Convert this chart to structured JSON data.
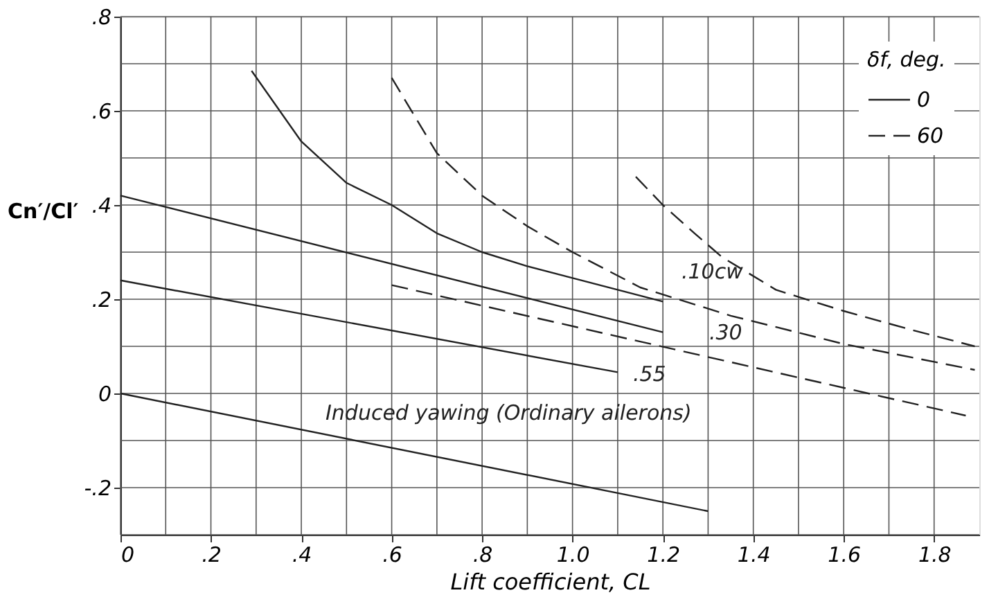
{
  "chart_data": {
    "type": "line",
    "xlabel": "Lift coefficient, CL",
    "ylabel": "Cn′/Cl′",
    "legend_title": "δf, deg.",
    "xlim": [
      0,
      1.9
    ],
    "ylim": [
      -0.3,
      0.8
    ],
    "xticks": [
      0,
      {
        "value": 0.1,
        "label": null
      },
      {
        "value": 0.2,
        "label": ".2"
      },
      {
        "value": 0.3,
        "label": null
      },
      {
        "value": 0.4,
        "label": ".4"
      },
      {
        "value": 0.5,
        "label": null
      },
      {
        "value": 0.6,
        "label": ".6"
      },
      {
        "value": 0.7,
        "label": null
      },
      {
        "value": 0.8,
        "label": ".8"
      },
      {
        "value": 0.9,
        "label": null
      },
      {
        "value": 1.0,
        "label": "1.0"
      },
      {
        "value": 1.1,
        "label": null
      },
      {
        "value": 1.2,
        "label": "1.2"
      },
      {
        "value": 1.3,
        "label": null
      },
      {
        "value": 1.4,
        "label": "1.4"
      },
      {
        "value": 1.5,
        "label": null
      },
      {
        "value": 1.6,
        "label": "1.6"
      },
      {
        "value": 1.7,
        "label": null
      },
      {
        "value": 1.8,
        "label": "1.8"
      }
    ],
    "yticks": [
      {
        "value": -0.3,
        "label": null
      },
      {
        "value": -0.2,
        "label": "-.2"
      },
      {
        "value": -0.1,
        "label": null
      },
      0,
      {
        "value": 0.1,
        "label": null
      },
      {
        "value": 0.2,
        "label": ".2"
      },
      {
        "value": 0.3,
        "label": null
      },
      {
        "value": 0.4,
        "label": ".4"
      },
      {
        "value": 0.5,
        "label": null
      },
      {
        "value": 0.6,
        "label": ".6"
      },
      {
        "value": 0.7,
        "label": null
      },
      {
        "value": 0.8,
        "label": ".8"
      }
    ],
    "grid": true,
    "legend": "top right",
    "marker": "none",
    "series": [
      {
        "name": "0",
        "color": "#222222",
        "line_style": "solid",
        "x": [
          0,
          1.3
        ],
        "values": [
          0,
          -0.25
        ]
      },
      {
        "color": "#222222",
        "line_style": "solid",
        "x": [
          0,
          1.1
        ],
        "values": [
          0.24,
          0.045
        ]
      },
      {
        "color": "#222222",
        "line_style": "solid",
        "x": [
          0,
          1.2
        ],
        "values": [
          0.42,
          0.13
        ]
      },
      {
        "color": "#222222",
        "line_style": "solid",
        "x": [
          0.29,
          0.4,
          0.5,
          0.6,
          0.7,
          0.8,
          0.9,
          1.0,
          1.1,
          1.2
        ],
        "values": [
          0.685,
          0.535,
          0.447,
          0.4,
          0.34,
          0.3,
          0.27,
          0.245,
          0.22,
          0.195
        ]
      },
      {
        "name": "60",
        "color": "#222222",
        "line_style": "dashed",
        "x": [
          0.6,
          1.87
        ],
        "values": [
          0.23,
          -0.047
        ]
      },
      {
        "color": "#222222",
        "line_style": "dashed",
        "x": [
          0.6,
          0.7,
          0.8,
          0.9,
          1.0,
          1.15,
          1.35,
          1.6,
          1.89
        ],
        "values": [
          0.67,
          0.51,
          0.42,
          0.355,
          0.3,
          0.225,
          0.165,
          0.105,
          0.05
        ]
      },
      {
        "color": "#222222",
        "line_style": "dashed",
        "x": [
          1.14,
          1.2,
          1.27,
          1.33,
          1.45,
          1.6,
          1.75,
          1.89
        ],
        "values": [
          0.46,
          0.4,
          0.34,
          0.29,
          0.22,
          0.175,
          0.135,
          0.1
        ]
      }
    ],
    "annotations": [
      ".10cw",
      ".30",
      ".55",
      "Induced yawing (Ordinary ailerons)"
    ]
  }
}
